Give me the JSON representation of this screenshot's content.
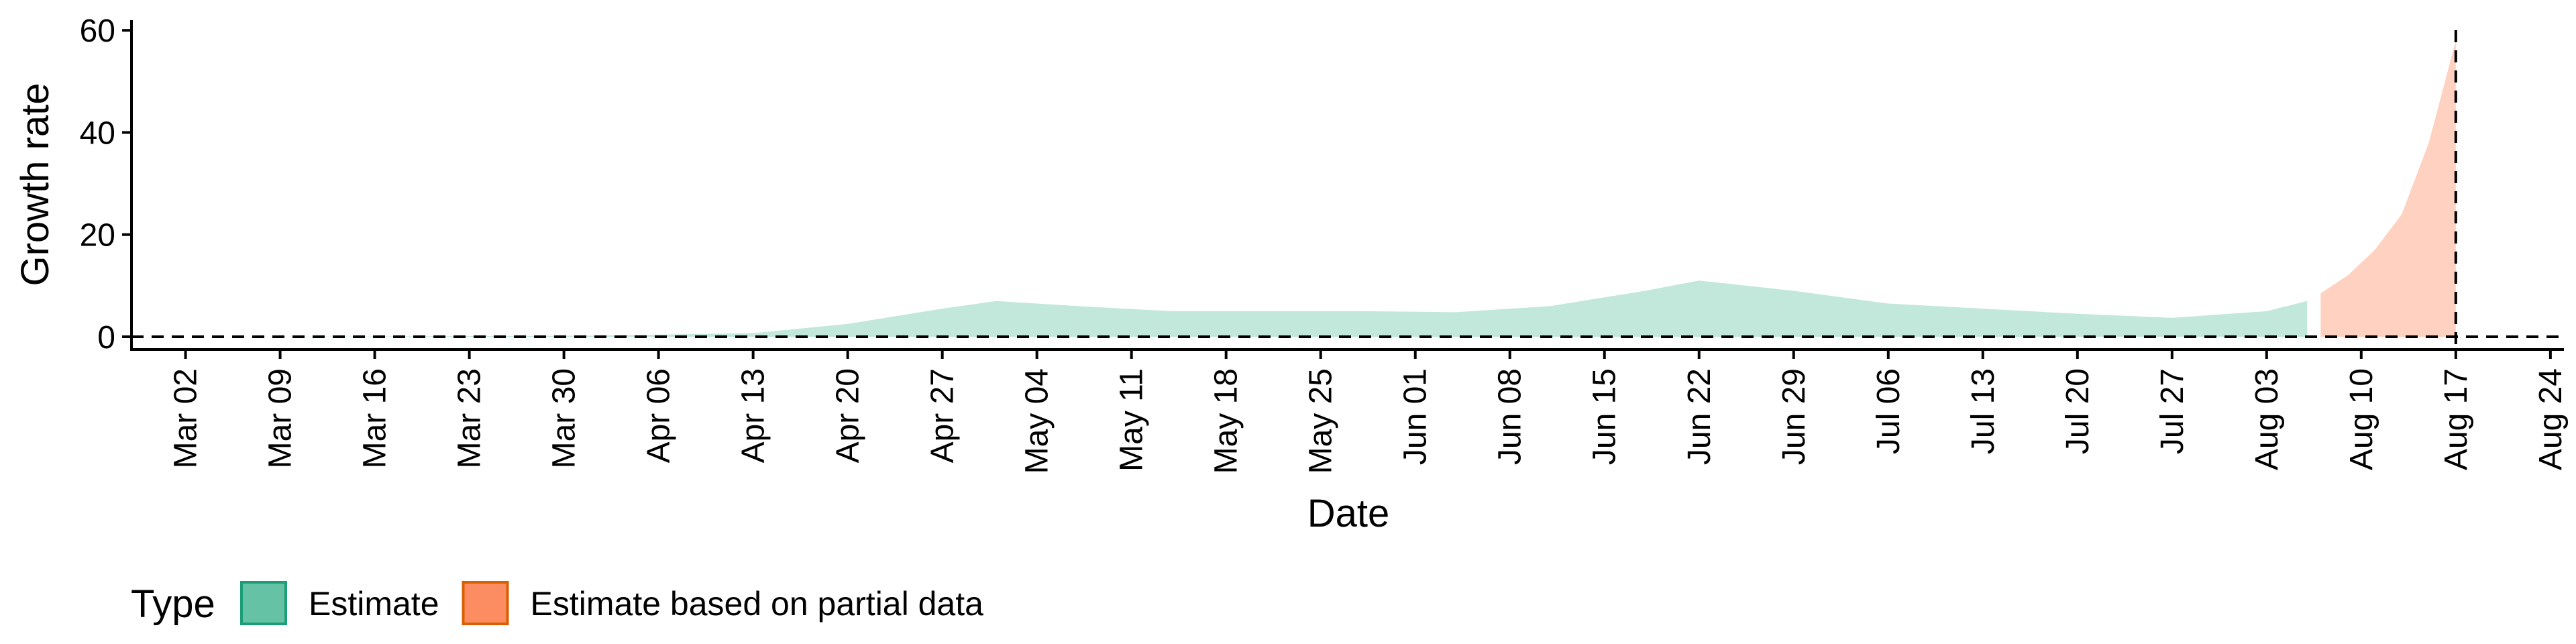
{
  "chart_data": {
    "type": "area",
    "title": "",
    "xlabel": "Date",
    "ylabel": "Growth rate",
    "ylim": [
      -2.5,
      62
    ],
    "xlim": [
      "2020-02-27",
      "2020-08-25"
    ],
    "x_ticks": [
      "2020-03-02",
      "2020-03-09",
      "2020-03-16",
      "2020-03-23",
      "2020-03-30",
      "2020-04-06",
      "2020-04-13",
      "2020-04-20",
      "2020-04-27",
      "2020-05-04",
      "2020-05-11",
      "2020-05-18",
      "2020-05-25",
      "2020-06-01",
      "2020-06-08",
      "2020-06-15",
      "2020-06-22",
      "2020-06-29",
      "2020-07-06",
      "2020-07-13",
      "2020-07-20",
      "2020-07-27",
      "2020-08-03",
      "2020-08-10",
      "2020-08-17",
      "2020-08-24"
    ],
    "x_tick_labels": [
      "Mar 02",
      "Mar 09",
      "Mar 16",
      "Mar 23",
      "Mar 30",
      "Apr 06",
      "Apr 13",
      "Apr 20",
      "Apr 27",
      "May 04",
      "May 11",
      "May 18",
      "May 25",
      "Jun 01",
      "Jun 08",
      "Jun 15",
      "Jun 22",
      "Jun 29",
      "Jul 06",
      "Jul 13",
      "Jul 20",
      "Jul 27",
      "Aug 03",
      "Aug 10",
      "Aug 17",
      "Aug 24"
    ],
    "y_ticks": [
      0,
      20,
      40,
      60
    ],
    "y_tick_labels": [
      "0",
      "20",
      "40",
      "60"
    ],
    "hline_y": 0,
    "vline_x": "2020-08-17",
    "legend_title": "Type",
    "legend_position": "bottom-left",
    "grid": false,
    "series": [
      {
        "name": "Estimate",
        "fill": "#66c2a5",
        "stroke": "#1b9e77",
        "opacity": 0.4,
        "points": [
          [
            "2020-03-01",
            0
          ],
          [
            "2020-03-15",
            0.05
          ],
          [
            "2020-04-01",
            0.2
          ],
          [
            "2020-04-13",
            0.7
          ],
          [
            "2020-04-20",
            2.5
          ],
          [
            "2020-04-27",
            5.5
          ],
          [
            "2020-05-01",
            7
          ],
          [
            "2020-05-07",
            6
          ],
          [
            "2020-05-14",
            5
          ],
          [
            "2020-05-21",
            5
          ],
          [
            "2020-05-28",
            5
          ],
          [
            "2020-06-04",
            4.8
          ],
          [
            "2020-06-11",
            6
          ],
          [
            "2020-06-18",
            9
          ],
          [
            "2020-06-22",
            11
          ],
          [
            "2020-06-29",
            9
          ],
          [
            "2020-07-06",
            6.5
          ],
          [
            "2020-07-13",
            5.5
          ],
          [
            "2020-07-20",
            4.5
          ],
          [
            "2020-07-27",
            3.7
          ],
          [
            "2020-08-03",
            5
          ],
          [
            "2020-08-06",
            7
          ]
        ]
      },
      {
        "name": "Estimate based on partial data",
        "fill": "#fc8d62",
        "stroke": "#d95f02",
        "opacity": 0.4,
        "points": [
          [
            "2020-08-07",
            8.5
          ],
          [
            "2020-08-09",
            12
          ],
          [
            "2020-08-11",
            17
          ],
          [
            "2020-08-13",
            24
          ],
          [
            "2020-08-15",
            38
          ],
          [
            "2020-08-17",
            58
          ]
        ]
      }
    ]
  }
}
